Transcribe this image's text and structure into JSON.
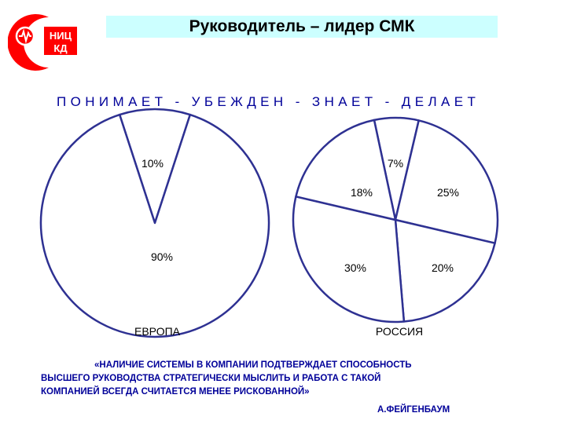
{
  "logo": {
    "text_line1": "НИЦ",
    "text_line2": "КД"
  },
  "title": "Руководитель – лидер СМК",
  "subtitle": "ПОНИМАЕТ - УБЕЖДЕН  - ЗНАЕТ - ДЕЛАЕТ",
  "chart_data": [
    {
      "type": "pie",
      "name": "ЕВРОПА",
      "slices": [
        {
          "label": "10%",
          "value": 10
        },
        {
          "label": "90%",
          "value": 90
        }
      ]
    },
    {
      "type": "pie",
      "name": "РОССИЯ",
      "slices": [
        {
          "label": "7%",
          "value": 7
        },
        {
          "label": "25%",
          "value": 25
        },
        {
          "label": "20%",
          "value": 20
        },
        {
          "label": "30%",
          "value": 30
        },
        {
          "label": "18%",
          "value": 18
        }
      ]
    }
  ],
  "quote": {
    "line1": "«НАЛИЧИЕ СИСТЕМЫ В КОМПАНИИ ПОДТВЕРЖДАЕТ СПОСОБНОСТЬ",
    "line2": "ВЫСШЕГО РУКОВОДСТВА СТРАТЕГИЧЕСКИ МЫСЛИТЬ И РАБОТА С ТАКОЙ",
    "line3": "КОМПАНИЕЙ ВСЕГДА СЧИТАЕТСЯ МЕНЕЕ РИСКОВАННОЙ»"
  },
  "author": "А.ФЕЙГЕНБАУМ",
  "colors": {
    "outline": "#2e3192",
    "accent_red": "#ff0000",
    "title_bg": "#ccffff",
    "text_blue": "#000099"
  }
}
